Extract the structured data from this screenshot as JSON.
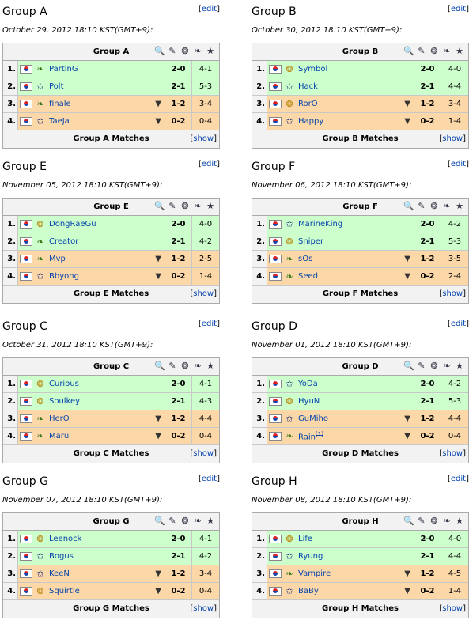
{
  "groups": [
    {
      "title": "Group A",
      "date": "October 29, 2012 18:10 KST(GMT+9):",
      "table_title": "Group A",
      "footer": "Group A Matches",
      "players": [
        {
          "rank": "1.",
          "race": "Z",
          "name": "PartinG",
          "score": "2-0",
          "maps": "4-1",
          "status": "adv"
        },
        {
          "rank": "2.",
          "race": "T",
          "name": "Polt",
          "score": "2-1",
          "maps": "5-3",
          "status": "adv"
        },
        {
          "rank": "3.",
          "race": "Z",
          "name": "finale",
          "score": "1-2",
          "maps": "3-4",
          "status": "elim"
        },
        {
          "rank": "4.",
          "race": "T",
          "name": "TaeJa",
          "score": "0-2",
          "maps": "0-4",
          "status": "elim"
        }
      ]
    },
    {
      "title": "Group B",
      "date": "October 30, 2012 18:10 KST(GMT+9):",
      "table_title": "Group B",
      "footer": "Group B Matches",
      "players": [
        {
          "rank": "1.",
          "race": "P",
          "name": "Symbol",
          "score": "2-0",
          "maps": "4-0",
          "status": "adv"
        },
        {
          "rank": "2.",
          "race": "T",
          "name": "Hack",
          "score": "2-1",
          "maps": "4-4",
          "status": "adv"
        },
        {
          "rank": "3.",
          "race": "P",
          "name": "RorO",
          "score": "1-2",
          "maps": "3-4",
          "status": "elim"
        },
        {
          "rank": "4.",
          "race": "T",
          "name": "Happy",
          "score": "0-2",
          "maps": "1-4",
          "status": "elim"
        }
      ]
    },
    {
      "title": "Group E",
      "date": "November 05, 2012 18:10 KST(GMT+9):",
      "table_title": "Group E",
      "footer": "Group E Matches",
      "players": [
        {
          "rank": "1.",
          "race": "P",
          "name": "DongRaeGu",
          "score": "2-0",
          "maps": "4-0",
          "status": "adv"
        },
        {
          "rank": "2.",
          "race": "Z",
          "name": "Creator",
          "score": "2-1",
          "maps": "4-2",
          "status": "adv"
        },
        {
          "rank": "3.",
          "race": "Z",
          "name": "Mvp",
          "score": "1-2",
          "maps": "2-5",
          "status": "elim"
        },
        {
          "rank": "4.",
          "race": "T",
          "name": "Bbyong",
          "score": "0-2",
          "maps": "1-4",
          "status": "elim"
        }
      ]
    },
    {
      "title": "Group F",
      "date": "November 06, 2012 18:10 KST(GMT+9):",
      "table_title": "Group F",
      "footer": "Group F Matches",
      "players": [
        {
          "rank": "1.",
          "race": "T",
          "name": "MarineKing",
          "score": "2-0",
          "maps": "4-2",
          "status": "adv"
        },
        {
          "rank": "2.",
          "race": "P",
          "name": "Sniper",
          "score": "2-1",
          "maps": "5-3",
          "status": "adv"
        },
        {
          "rank": "3.",
          "race": "Z",
          "name": "sOs",
          "score": "1-2",
          "maps": "3-5",
          "status": "elim"
        },
        {
          "rank": "4.",
          "race": "Z",
          "name": "Seed",
          "score": "0-2",
          "maps": "2-4",
          "status": "elim"
        }
      ]
    },
    {
      "title": "Group C",
      "date": "October 31, 2012 18:10 KST(GMT+9):",
      "table_title": "Group C",
      "footer": "Group C Matches",
      "players": [
        {
          "rank": "1.",
          "race": "P",
          "name": "Curious",
          "score": "2-0",
          "maps": "4-1",
          "status": "adv"
        },
        {
          "rank": "2.",
          "race": "P",
          "name": "Soulkey",
          "score": "2-1",
          "maps": "4-3",
          "status": "adv"
        },
        {
          "rank": "3.",
          "race": "Z",
          "name": "HerO",
          "score": "1-2",
          "maps": "4-4",
          "status": "elim"
        },
        {
          "rank": "4.",
          "race": "Z",
          "name": "Maru",
          "score": "0-2",
          "maps": "0-4",
          "status": "elim"
        }
      ]
    },
    {
      "title": "Group D",
      "date": "November 01, 2012 18:10 KST(GMT+9):",
      "table_title": "Group D",
      "footer": "Group D Matches",
      "players": [
        {
          "rank": "1.",
          "race": "T",
          "name": "YoDa",
          "score": "2-0",
          "maps": "4-2",
          "status": "adv"
        },
        {
          "rank": "2.",
          "race": "P",
          "name": "HyuN",
          "score": "2-1",
          "maps": "5-3",
          "status": "adv"
        },
        {
          "rank": "3.",
          "race": "T",
          "name": "GuMiho",
          "score": "1-2",
          "maps": "4-4",
          "status": "elim"
        },
        {
          "rank": "4.",
          "race": "Z",
          "name": "Rain",
          "note": "[1]",
          "struck": true,
          "score": "0-2",
          "maps": "0-4",
          "status": "elim"
        }
      ]
    },
    {
      "title": "Group G",
      "date": "November 07, 2012 18:10 KST(GMT+9):",
      "table_title": "Group G",
      "footer": "Group G Matches",
      "players": [
        {
          "rank": "1.",
          "race": "P",
          "name": "Leenock",
          "score": "2-0",
          "maps": "4-1",
          "status": "adv"
        },
        {
          "rank": "2.",
          "race": "T",
          "name": "Bogus",
          "score": "2-1",
          "maps": "4-2",
          "status": "adv"
        },
        {
          "rank": "3.",
          "race": "T",
          "name": "KeeN",
          "score": "1-2",
          "maps": "3-4",
          "status": "elim"
        },
        {
          "rank": "4.",
          "race": "P",
          "name": "Squirtle",
          "score": "0-2",
          "maps": "0-4",
          "status": "elim"
        }
      ]
    },
    {
      "title": "Group H",
      "date": "November 08, 2012 18:10 KST(GMT+9):",
      "table_title": "Group H",
      "footer": "Group H Matches",
      "players": [
        {
          "rank": "1.",
          "race": "P",
          "name": "Life",
          "score": "2-0",
          "maps": "4-0",
          "status": "adv"
        },
        {
          "rank": "2.",
          "race": "T",
          "name": "Ryung",
          "score": "2-1",
          "maps": "4-4",
          "status": "adv"
        },
        {
          "rank": "3.",
          "race": "Z",
          "name": "Vampire",
          "score": "1-2",
          "maps": "4-5",
          "status": "elim"
        },
        {
          "rank": "4.",
          "race": "T",
          "name": "BaBy",
          "score": "0-2",
          "maps": "1-4",
          "status": "elim"
        }
      ]
    }
  ],
  "labels": {
    "edit_open": "[",
    "edit": "edit",
    "edit_close": "]",
    "show": "show",
    "show_open": "[",
    "show_close": "]"
  },
  "icons": {
    "header_icons": [
      "magnifier-icon",
      "mineral-icon",
      "protoss-icon",
      "zerg-icon",
      "terran-icon"
    ],
    "races": {
      "P": "protoss-icon",
      "T": "terran-icon",
      "Z": "zerg-icon"
    },
    "advance_down": "down-arrow-icon"
  },
  "colors": {
    "advance": "#ccffcc",
    "eliminated": "#fcd8a8",
    "header": "#f2f2f2",
    "link": "#0645ad"
  }
}
